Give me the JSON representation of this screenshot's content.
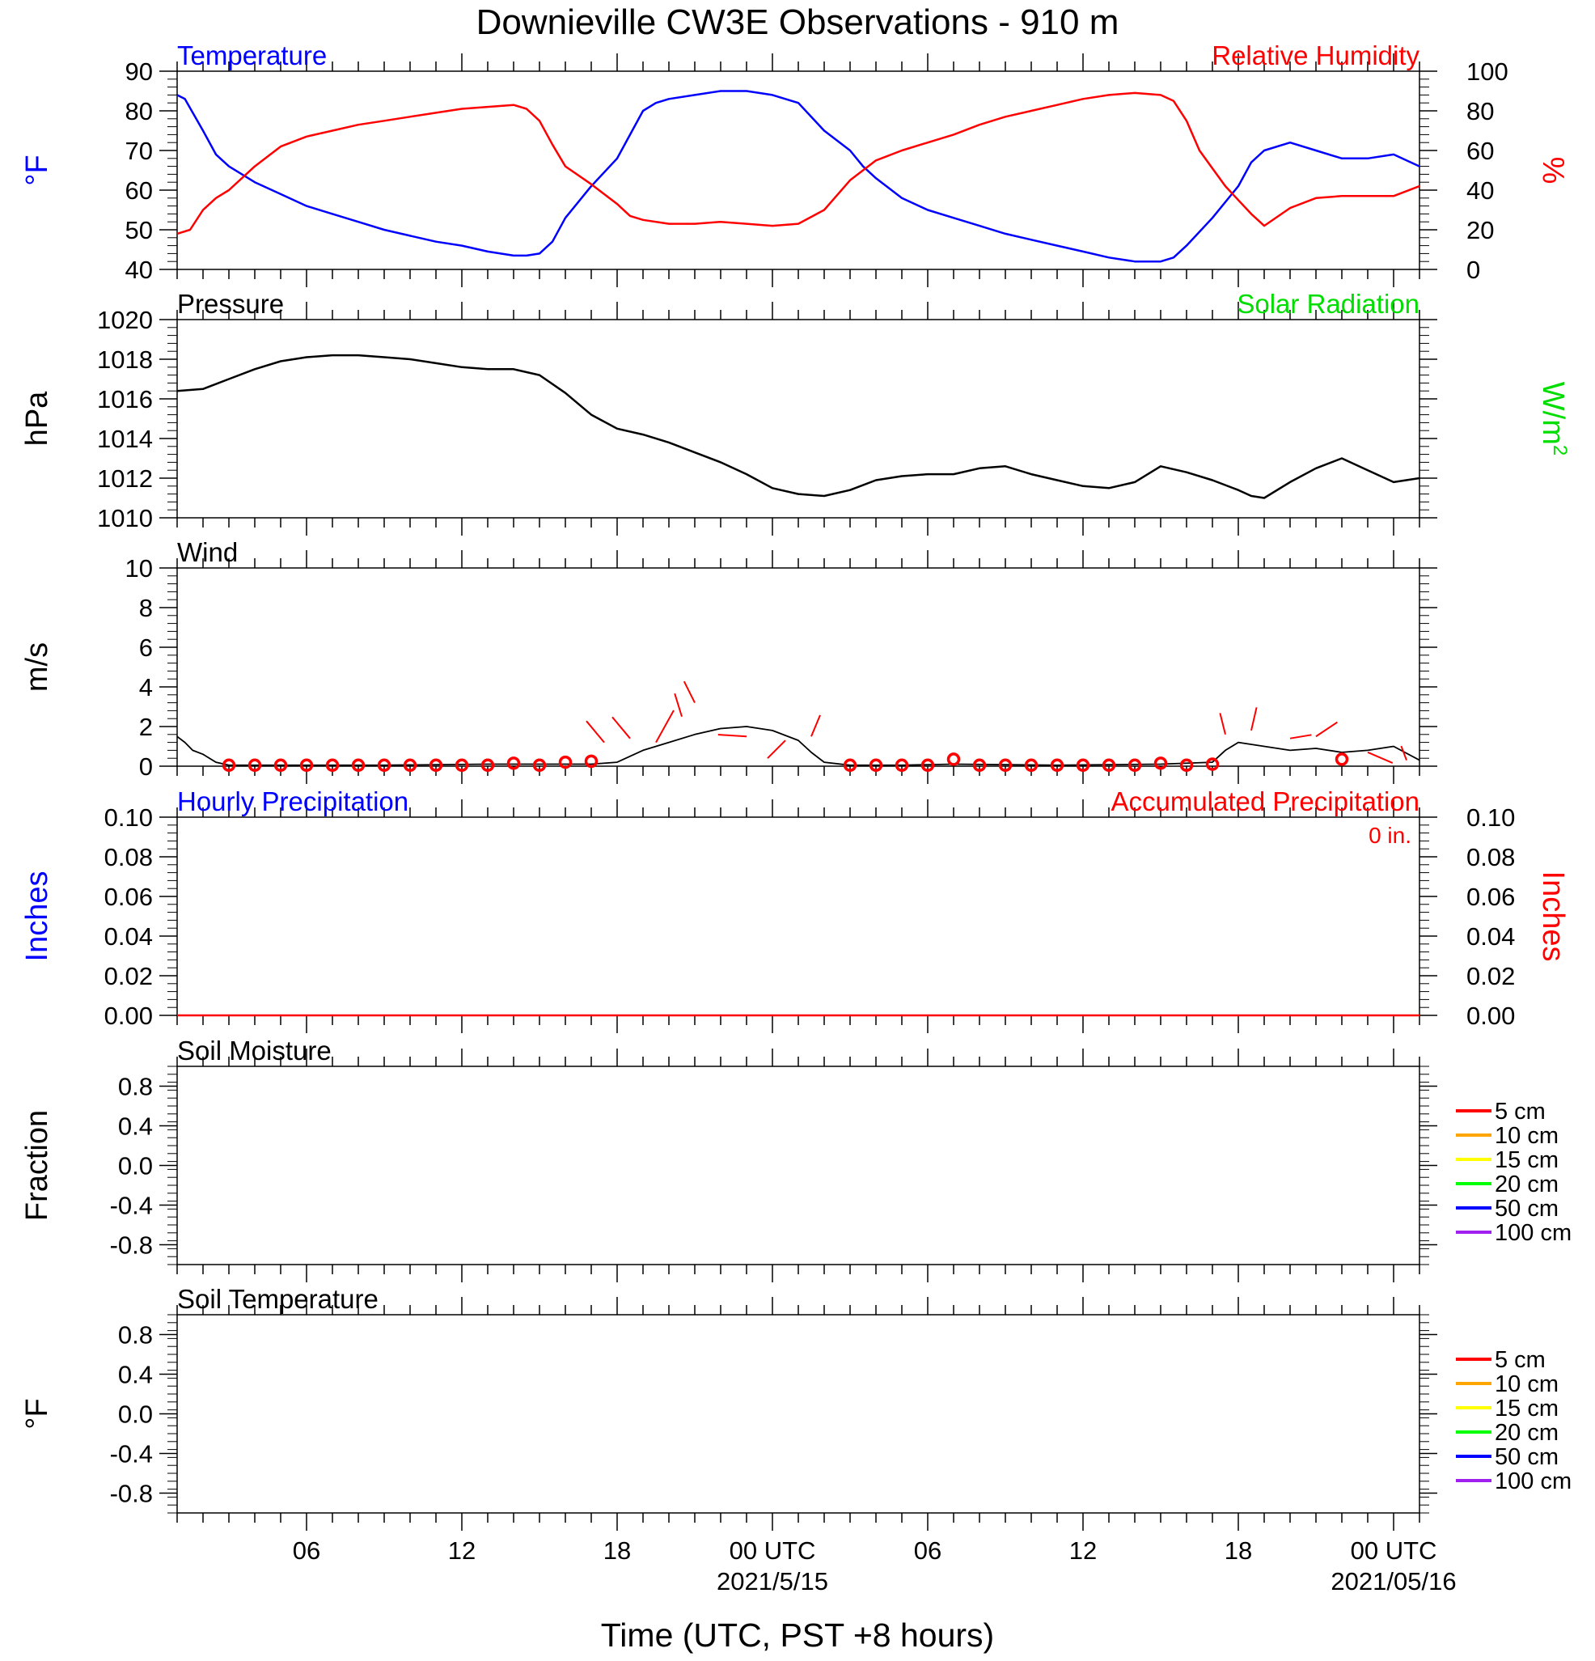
{
  "title": "Downieville CW3E Observations - 910 m",
  "xlabel": "Time (UTC, PST +8 hours)",
  "colors": {
    "blue": "#0000ff",
    "red": "#ff0000",
    "green": "#00dd00",
    "black": "#000000"
  },
  "x_axis": {
    "range_hours": [
      0,
      48
    ],
    "ticks": [
      {
        "hour": 5,
        "label": "06",
        "date": ""
      },
      {
        "hour": 11,
        "label": "12",
        "date": ""
      },
      {
        "hour": 17,
        "label": "18",
        "date": ""
      },
      {
        "hour": 23,
        "label": "00 UTC",
        "date": "2021/5/15"
      },
      {
        "hour": 29,
        "label": "06",
        "date": ""
      },
      {
        "hour": 35,
        "label": "12",
        "date": ""
      },
      {
        "hour": 41,
        "label": "18",
        "date": ""
      },
      {
        "hour": 47,
        "label": "00 UTC",
        "date": "2021/05/16"
      }
    ]
  },
  "chart_data": [
    {
      "id": "temp-rh",
      "type": "line",
      "left_title": "Temperature",
      "right_title": "Relative Humidity",
      "ylabel_left": "°F",
      "ylabel_right": "%",
      "ylim_left": [
        40,
        90
      ],
      "yticks_left": [
        "40",
        "50",
        "60",
        "70",
        "80",
        "90"
      ],
      "ylim_right": [
        0,
        100
      ],
      "yticks_right": [
        "0",
        "20",
        "40",
        "60",
        "80",
        "100"
      ],
      "series": [
        {
          "color": "#0000ff",
          "axis": "left",
          "x": [
            0,
            0.3,
            1,
            1.5,
            2,
            3,
            4,
            5,
            6,
            7,
            8,
            9,
            10,
            11,
            12,
            13,
            13.5,
            14,
            14.5,
            15,
            16,
            17,
            17.5,
            18,
            18.5,
            19,
            20,
            21,
            22,
            23,
            24,
            25,
            26,
            26.5,
            27,
            28,
            29,
            30,
            31,
            32,
            33,
            34,
            35,
            36,
            37,
            38,
            38.5,
            39,
            40,
            41,
            41.5,
            42,
            43,
            44,
            45,
            46,
            47,
            48
          ],
          "values": [
            84,
            83,
            75,
            69,
            66,
            62,
            59,
            56,
            54,
            52,
            50,
            48.5,
            47,
            46,
            44.5,
            43.5,
            43.5,
            44,
            47,
            53,
            61,
            68,
            74,
            80,
            82,
            83,
            84,
            85,
            85,
            84,
            82,
            75,
            70,
            66,
            63,
            58,
            55,
            53,
            51,
            49,
            47.5,
            46,
            44.5,
            43,
            42,
            42,
            43,
            46,
            53,
            61,
            67,
            70,
            72,
            70,
            68,
            68,
            69,
            66
          ]
        },
        {
          "color": "#ff0000",
          "axis": "right",
          "x": [
            0,
            0.5,
            1,
            1.5,
            2,
            3,
            4,
            5,
            6,
            7,
            8,
            9,
            10,
            11,
            12,
            13,
            13.5,
            14,
            14.5,
            15,
            16,
            17,
            17.5,
            18,
            19,
            20,
            21,
            22,
            23,
            24,
            25,
            26,
            27,
            28,
            29,
            30,
            31,
            32,
            33,
            34,
            35,
            36,
            37,
            38,
            38.5,
            39,
            39.5,
            40,
            40.5,
            41,
            41.5,
            42,
            43,
            44,
            45,
            46,
            47,
            48
          ],
          "values": [
            18,
            20,
            30,
            36,
            40,
            52,
            62,
            67,
            70,
            73,
            75,
            77,
            79,
            81,
            82,
            83,
            81,
            75,
            63,
            52,
            43,
            33,
            27,
            25,
            23,
            23,
            24,
            23,
            22,
            23,
            30,
            45,
            55,
            60,
            64,
            68,
            73,
            77,
            80,
            83,
            86,
            88,
            89,
            88,
            85,
            75,
            60,
            51,
            42,
            35,
            28,
            22,
            31,
            36,
            37,
            37,
            37,
            42
          ]
        }
      ]
    },
    {
      "id": "pressure",
      "type": "line",
      "left_title": "Pressure",
      "right_title": "Solar Radiation",
      "ylabel_left": "hPa",
      "ylabel_right": "W/m",
      "ylabel_right_sup": "2",
      "ylim_left": [
        1010,
        1020
      ],
      "yticks_left": [
        "1010",
        "1012",
        "1014",
        "1016",
        "1018",
        "1020"
      ],
      "series": [
        {
          "color": "#000000",
          "axis": "left",
          "x": [
            0,
            1,
            2,
            3,
            4,
            5,
            6,
            7,
            8,
            9,
            10,
            11,
            12,
            13,
            14,
            15,
            16,
            17,
            18,
            19,
            20,
            21,
            22,
            23,
            24,
            25,
            26,
            27,
            28,
            29,
            30,
            31,
            32,
            33,
            34,
            35,
            36,
            37,
            38,
            39,
            40,
            41,
            41.5,
            42,
            43,
            44,
            45,
            46,
            47,
            48
          ],
          "values": [
            1016.4,
            1016.5,
            1017,
            1017.5,
            1017.9,
            1018.1,
            1018.2,
            1018.2,
            1018.1,
            1018,
            1017.8,
            1017.6,
            1017.5,
            1017.5,
            1017.2,
            1016.3,
            1015.2,
            1014.5,
            1014.2,
            1013.8,
            1013.3,
            1012.8,
            1012.2,
            1011.5,
            1011.2,
            1011.1,
            1011.4,
            1011.9,
            1012.1,
            1012.2,
            1012.2,
            1012.5,
            1012.6,
            1012.2,
            1011.9,
            1011.6,
            1011.5,
            1011.8,
            1012.6,
            1012.3,
            1011.9,
            1011.4,
            1011.1,
            1011.0,
            1011.8,
            1012.5,
            1013.0,
            1012.4,
            1011.8,
            1012.0
          ]
        }
      ]
    },
    {
      "id": "wind",
      "type": "line",
      "left_title": "Wind",
      "ylabel_left": "m/s",
      "ylim_left": [
        0,
        10
      ],
      "yticks_left": [
        "0",
        "2",
        "4",
        "6",
        "8",
        "10"
      ],
      "series": [
        {
          "color": "#000000",
          "axis": "left",
          "x": [
            0,
            0.3,
            0.6,
            1,
            1.5,
            2,
            4,
            8,
            12,
            15,
            16,
            17,
            18,
            19,
            20,
            21,
            22,
            23,
            24,
            24.5,
            25,
            26,
            28,
            30,
            34,
            38,
            40,
            40.5,
            41,
            42,
            43,
            44,
            45,
            46,
            47,
            48
          ],
          "values": [
            1.5,
            1.2,
            0.8,
            0.6,
            0.2,
            0.05,
            0.05,
            0.05,
            0.1,
            0.1,
            0.1,
            0.2,
            0.8,
            1.2,
            1.6,
            1.9,
            2.0,
            1.8,
            1.3,
            0.7,
            0.2,
            0.05,
            0.05,
            0.1,
            0.05,
            0.1,
            0.2,
            0.8,
            1.2,
            1.0,
            0.8,
            0.9,
            0.7,
            0.8,
            1.0,
            0.3
          ]
        }
      ],
      "calm_markers_hours": [
        2,
        3,
        4,
        5,
        6,
        7,
        8,
        9,
        10,
        11,
        12,
        13,
        14,
        15,
        16,
        26,
        27,
        28,
        29,
        30,
        31,
        32,
        33,
        34,
        35,
        36,
        37,
        38,
        39,
        40,
        45
      ],
      "calm_markers_values": [
        0.05,
        0.05,
        0.05,
        0.05,
        0.05,
        0.05,
        0.05,
        0.05,
        0.05,
        0.05,
        0.05,
        0.15,
        0.05,
        0.2,
        0.25,
        0.05,
        0.05,
        0.05,
        0.05,
        0.35,
        0.05,
        0.05,
        0.05,
        0.05,
        0.05,
        0.05,
        0.05,
        0.15,
        0.05,
        0.1,
        0.35
      ],
      "barbs": [
        {
          "hour": 16.5,
          "speed": 1.2,
          "dx": -1.0,
          "dy": 1.2
        },
        {
          "hour": 17.5,
          "speed": 1.4,
          "dx": -1.0,
          "dy": 1.2
        },
        {
          "hour": 18.5,
          "speed": 1.2,
          "dx": 1.0,
          "dy": 1.8
        },
        {
          "hour": 19.5,
          "speed": 2.5,
          "dx": -0.4,
          "dy": 1.3
        },
        {
          "hour": 20,
          "speed": 3.2,
          "dx": -0.6,
          "dy": 1.2
        },
        {
          "hour": 22,
          "speed": 1.5,
          "dx": -1.6,
          "dy": 0.1
        },
        {
          "hour": 23.5,
          "speed": 1.3,
          "dx": -1.0,
          "dy": -1.0
        },
        {
          "hour": 24.5,
          "speed": 1.5,
          "dx": 0.5,
          "dy": 1.2
        },
        {
          "hour": 40.5,
          "speed": 1.6,
          "dx": -0.3,
          "dy": 1.2
        },
        {
          "hour": 41.5,
          "speed": 1.8,
          "dx": 0.3,
          "dy": 1.3
        },
        {
          "hour": 43,
          "speed": 1.4,
          "dx": 1.2,
          "dy": 0.2
        },
        {
          "hour": 44,
          "speed": 1.5,
          "dx": 1.2,
          "dy": 0.8
        },
        {
          "hour": 46,
          "speed": 0.7,
          "dx": 1.4,
          "dy": -0.6
        },
        {
          "hour": 47.5,
          "speed": 0.3,
          "dx": -0.3,
          "dy": 0.8
        }
      ]
    },
    {
      "id": "precip",
      "type": "line",
      "left_title": "Hourly Precipitation",
      "right_title": "Accumulated Precipitation",
      "annotation": "0 in.",
      "ylabel_left": "Inches",
      "ylabel_right": "Inches",
      "ylim_left": [
        0,
        0.1
      ],
      "yticks_left": [
        "0.00",
        "0.02",
        "0.04",
        "0.06",
        "0.08",
        "0.10"
      ],
      "ylim_right": [
        0,
        0.1
      ],
      "yticks_right": [
        "0.00",
        "0.02",
        "0.04",
        "0.06",
        "0.08",
        "0.10"
      ],
      "series": [
        {
          "color": "#ff0000",
          "axis": "left",
          "x": [
            0,
            48
          ],
          "values": [
            0,
            0
          ]
        }
      ]
    },
    {
      "id": "soil-moisture",
      "type": "line",
      "left_title": "Soil Moisture",
      "ylabel_left": "Fraction",
      "ylim_left": [
        -1,
        1
      ],
      "yticks_left": [
        "-0.8",
        "-0.4",
        "0.0",
        "0.4",
        "0.8"
      ],
      "ytick_values": [
        -0.8,
        -0.4,
        0.0,
        0.4,
        0.8
      ],
      "legend": [
        {
          "name": "5 cm",
          "color": "#ff0000"
        },
        {
          "name": "10 cm",
          "color": "#ffa500"
        },
        {
          "name": "15 cm",
          "color": "#ffff00"
        },
        {
          "name": "20 cm",
          "color": "#00ff00"
        },
        {
          "name": "50 cm",
          "color": "#0000ff"
        },
        {
          "name": "100 cm",
          "color": "#a020f0"
        }
      ],
      "series": []
    },
    {
      "id": "soil-temp",
      "type": "line",
      "left_title": "Soil Temperature",
      "ylabel_left": "°F",
      "ylim_left": [
        -1,
        1
      ],
      "yticks_left": [
        "-0.8",
        "-0.4",
        "0.0",
        "0.4",
        "0.8"
      ],
      "ytick_values": [
        -0.8,
        -0.4,
        0.0,
        0.4,
        0.8
      ],
      "legend": [
        {
          "name": "5 cm",
          "color": "#ff0000"
        },
        {
          "name": "10 cm",
          "color": "#ffa500"
        },
        {
          "name": "15 cm",
          "color": "#ffff00"
        },
        {
          "name": "20 cm",
          "color": "#00ff00"
        },
        {
          "name": "50 cm",
          "color": "#0000ff"
        },
        {
          "name": "100 cm",
          "color": "#a020f0"
        }
      ],
      "series": []
    }
  ]
}
